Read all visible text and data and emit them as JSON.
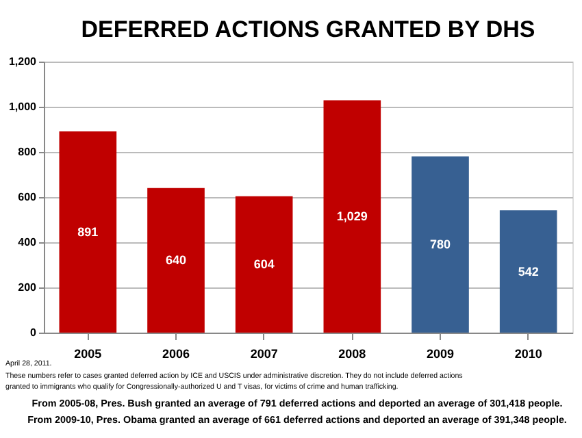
{
  "chart_data": {
    "type": "bar",
    "title": "DEFERRED ACTIONS GRANTED BY DHS",
    "categories": [
      "2005",
      "2006",
      "2007",
      "2008",
      "2009",
      "2010"
    ],
    "values": [
      891,
      640,
      604,
      1029,
      780,
      542
    ],
    "colors": [
      "#c00000",
      "#c00000",
      "#c00000",
      "#c00000",
      "#376092",
      "#376092"
    ],
    "value_labels": [
      "891",
      "640",
      "604",
      "1,029",
      "780",
      "542"
    ],
    "ylim": [
      0,
      1200
    ],
    "yticks": [
      0,
      200,
      400,
      600,
      800,
      {
        "value": 1000,
        "label": "1,000"
      },
      {
        "value": 1200,
        "label": "1,200"
      }
    ],
    "grid": "y",
    "annotations": [
      "April 28, 2011.",
      "These numbers refer to cases granted deferred action by ICE and USCIS under administrative discretion. They do not include deferred actions",
      "granted to immigrants who qualify for Congressionally-authorized U and T visas, for victims of crime and human trafficking.",
      "From 2005-08, Pres. Bush granted an average of 791 deferred actions and  deported  an average of 301,418 people.",
      "From 2009-10, Pres. Obama granted an average of 661 deferred actions and deported an average of 391,348 people."
    ]
  }
}
